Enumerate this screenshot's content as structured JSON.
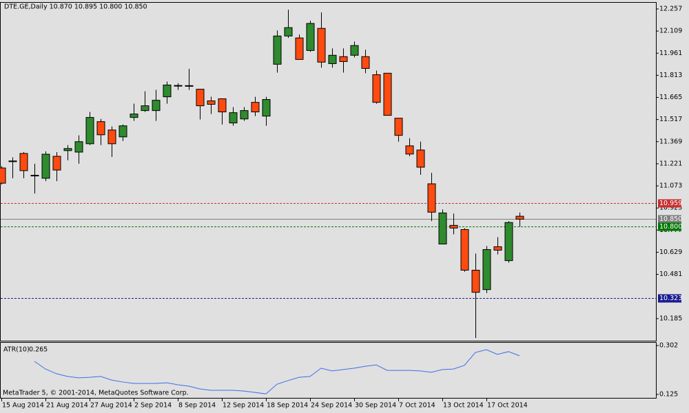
{
  "chart_data": [
    {
      "type": "candlestick",
      "title": "DTE.GE,Daily  10.870 10.895 10.800 10.850",
      "footer": "MetaTrader 5, © 2001-2014, MetaQuotes Software Corp.",
      "categories": [
        "15 Aug 2014",
        null,
        null,
        null,
        "21 Aug 2014",
        null,
        null,
        null,
        "27 Aug 2014",
        null,
        null,
        null,
        "2 Sep 2014",
        null,
        null,
        null,
        "8 Sep 2014",
        null,
        null,
        null,
        "12 Sep 2014",
        null,
        null,
        null,
        "18 Sep 2014",
        null,
        null,
        null,
        "24 Sep 2014",
        null,
        null,
        null,
        "30 Sep 2014",
        null,
        null,
        null,
        "7 Oct 2014",
        null,
        null,
        null,
        "13 Oct 2014",
        null,
        null,
        null,
        "17 Oct 2014",
        null,
        null,
        null
      ],
      "open": [
        11.193,
        11.235,
        11.29,
        11.144,
        11.124,
        11.271,
        11.309,
        11.299,
        11.355,
        11.503,
        11.447,
        11.401,
        11.531,
        11.577,
        11.577,
        11.669,
        11.742,
        11.744,
        11.72,
        11.642,
        11.656,
        11.494,
        11.521,
        11.632,
        11.54,
        11.887,
        12.076,
        12.063,
        11.979,
        12.127,
        11.891,
        11.938,
        11.947,
        11.938,
        11.817,
        11.827,
        11.526,
        11.341,
        11.313,
        11.087,
        10.684,
        10.809,
        10.781,
        10.509,
        10.379,
        10.666,
        10.573,
        10.87
      ],
      "high": [
        11.205,
        11.264,
        11.299,
        11.221,
        11.304,
        11.299,
        11.346,
        11.411,
        11.568,
        11.521,
        11.471,
        11.484,
        11.623,
        11.706,
        11.716,
        11.771,
        11.76,
        11.856,
        11.72,
        11.67,
        11.656,
        11.6,
        11.6,
        11.669,
        11.669,
        12.113,
        12.252,
        12.086,
        12.178,
        12.234,
        11.993,
        11.993,
        12.039,
        11.984,
        11.845,
        11.827,
        11.526,
        11.392,
        11.369,
        11.161,
        10.915,
        10.888,
        10.79,
        10.62,
        10.67,
        10.73,
        10.837,
        10.895
      ],
      "low": [
        11.082,
        11.124,
        11.124,
        11.022,
        11.105,
        11.105,
        11.244,
        11.221,
        11.346,
        11.346,
        11.267,
        11.373,
        11.508,
        11.568,
        11.508,
        11.623,
        11.715,
        11.715,
        11.517,
        11.554,
        11.484,
        11.475,
        11.508,
        11.54,
        11.475,
        11.831,
        12.063,
        11.919,
        11.97,
        11.864,
        11.864,
        11.831,
        11.933,
        11.827,
        11.623,
        11.545,
        11.369,
        11.272,
        11.147,
        10.837,
        10.684,
        10.749,
        10.499,
        10.055,
        10.356,
        10.615,
        10.559,
        10.8
      ],
      "close": [
        11.091,
        11.24,
        11.175,
        11.142,
        11.285,
        11.179,
        11.323,
        11.369,
        11.531,
        11.415,
        11.355,
        11.475,
        11.554,
        11.609,
        11.646,
        11.748,
        11.745,
        11.742,
        11.609,
        11.619,
        11.568,
        11.563,
        11.577,
        11.568,
        11.651,
        12.076,
        12.132,
        11.919,
        12.16,
        11.901,
        11.947,
        11.905,
        12.012,
        11.859,
        11.632,
        11.545,
        11.411,
        11.286,
        11.198,
        10.897,
        10.892,
        10.791,
        10.509,
        10.361,
        10.647,
        10.643,
        10.828,
        10.85
      ],
      "up_color": "#2e8b2e",
      "down_color": "#ff4a10",
      "ylim": [
        10.037,
        12.303
      ],
      "yticks": [
        12.257,
        12.109,
        11.961,
        11.813,
        11.665,
        11.517,
        11.369,
        11.221,
        11.073,
        10.925,
        10.777,
        10.629,
        10.481,
        10.185
      ],
      "levels": [
        {
          "value": 10.959,
          "color": "#c83030",
          "style": "dashed"
        },
        {
          "value": 10.85,
          "label": "10.850",
          "color": "#808080",
          "style": "solid"
        },
        {
          "value": 10.8,
          "label": "10.800",
          "color": "#007800",
          "style": "dashed"
        },
        {
          "value": 10.323,
          "color": "#1a1a90",
          "style": "dashed"
        }
      ]
    },
    {
      "type": "line",
      "title": "ATR(10)",
      "color": "#3a6ee8",
      "values": [
        null,
        null,
        null,
        0.245,
        0.217,
        0.2,
        0.19,
        0.185,
        0.187,
        0.19,
        0.177,
        0.17,
        0.165,
        0.165,
        0.165,
        0.167,
        0.16,
        0.155,
        0.145,
        0.14,
        0.14,
        0.14,
        0.137,
        0.132,
        0.127,
        0.162,
        0.175,
        0.187,
        0.19,
        0.22,
        0.21,
        0.215,
        0.22,
        0.227,
        0.232,
        0.212,
        0.212,
        0.212,
        0.21,
        0.205,
        0.215,
        0.217,
        0.23,
        0.277,
        0.287,
        0.27,
        0.28,
        0.265
      ],
      "ylim": [
        0.1125,
        0.3145
      ],
      "yticks": [
        0.302,
        0.125
      ]
    }
  ]
}
